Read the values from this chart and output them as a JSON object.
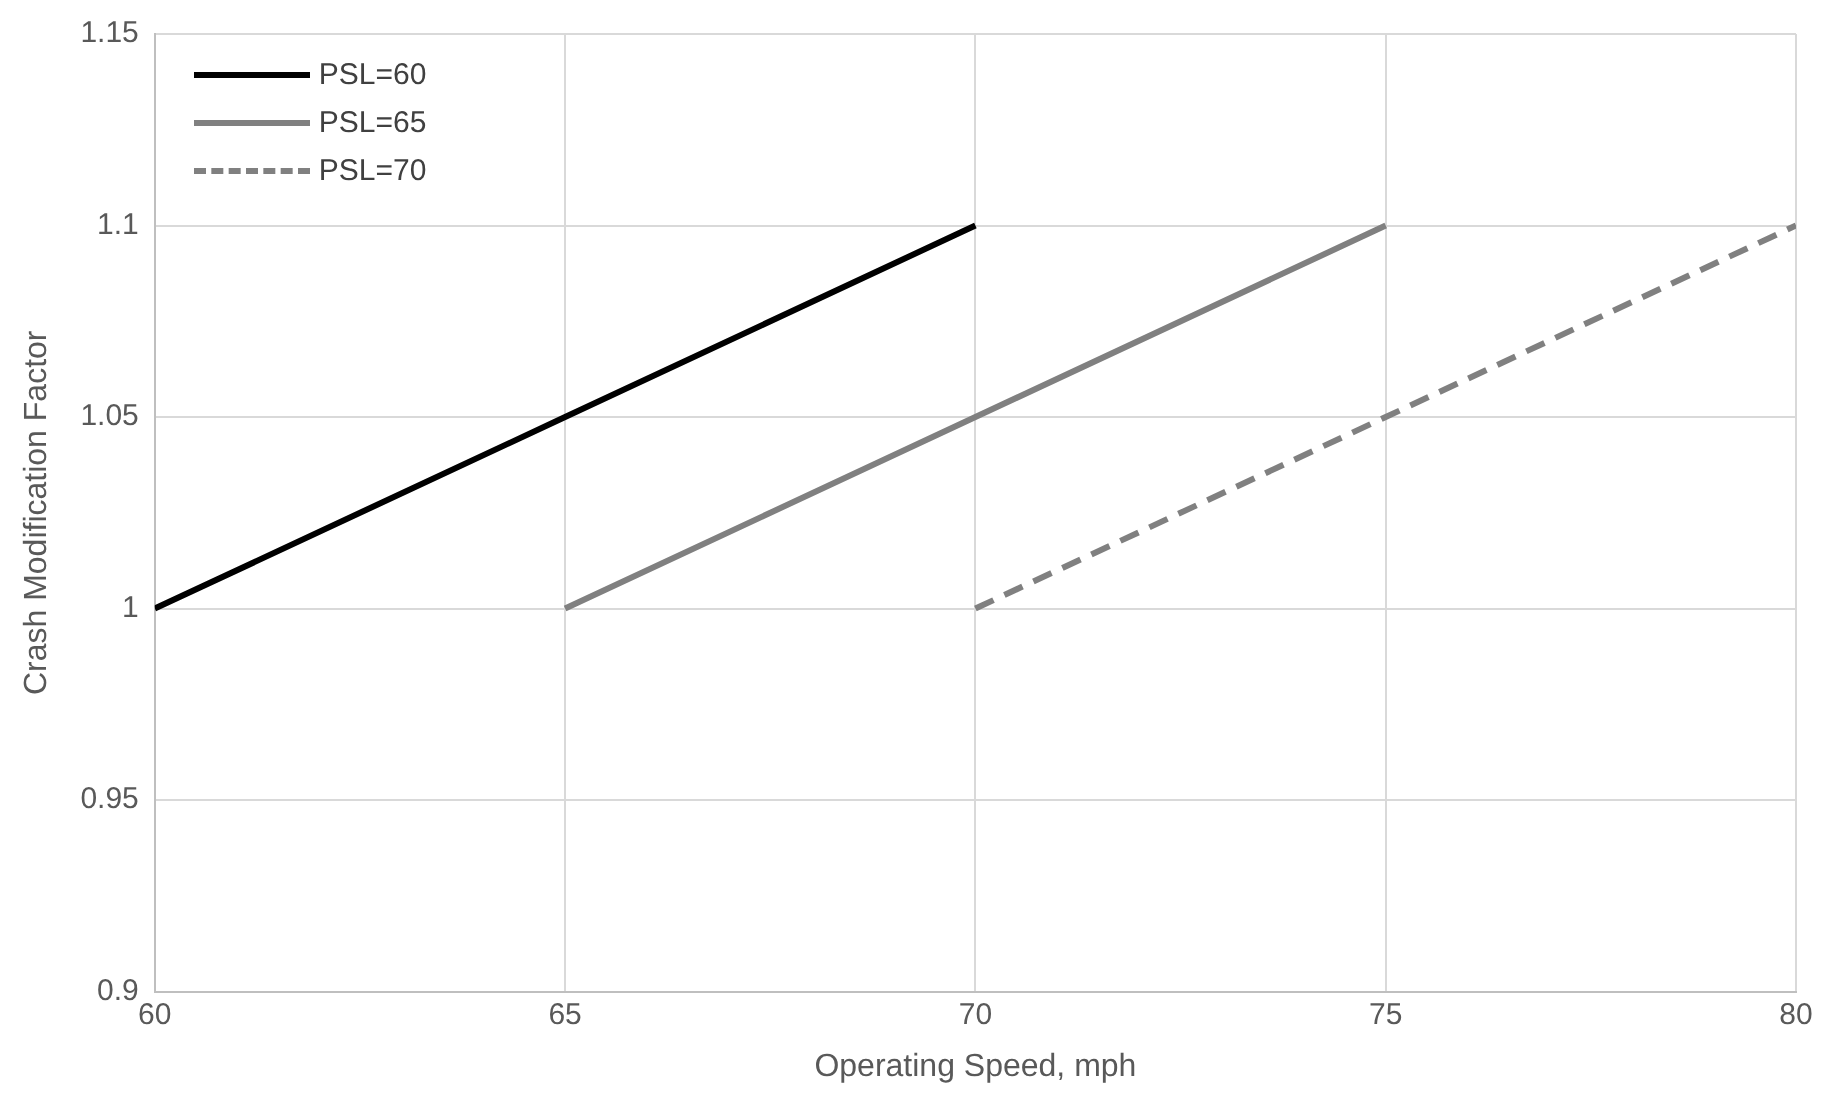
{
  "chart_data": {
    "type": "line",
    "xlabel": "Operating Speed, mph",
    "ylabel": "Crash Modification Factor",
    "series": [
      {
        "name": "PSL=60",
        "color": "#000000",
        "line_style": "solid",
        "x": [
          60,
          65,
          70
        ],
        "values": [
          1.0,
          1.05,
          1.1
        ]
      },
      {
        "name": "PSL=65",
        "color": "#808080",
        "line_style": "solid",
        "x": [
          65,
          70,
          75
        ],
        "values": [
          1.0,
          1.05,
          1.1
        ]
      },
      {
        "name": "PSL=70",
        "color": "#808080",
        "line_style": "dashed",
        "x": [
          70,
          75,
          80
        ],
        "values": [
          1.0,
          1.05,
          1.1
        ]
      }
    ],
    "xlim": [
      60,
      80
    ],
    "xticks": [
      60,
      65,
      70,
      75,
      80
    ],
    "ylim": [
      0.9,
      1.15
    ],
    "yticks": [
      0.9,
      0.95,
      1,
      1.05,
      1.1,
      1.15
    ],
    "grid": true,
    "legend": "top left",
    "marker": "none"
  }
}
